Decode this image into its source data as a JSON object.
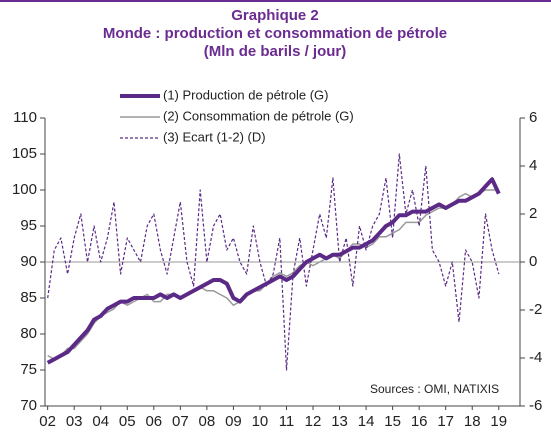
{
  "chart_data": {
    "type": "line",
    "title": "Graphique 2",
    "subtitle": [
      "Monde : production et consommation de pétrole",
      "(Mln de barils / jour)"
    ],
    "annotation": "Sources : OMI, NATIXIS",
    "x": [
      2002,
      2002.25,
      2002.5,
      2002.75,
      2003,
      2003.25,
      2003.5,
      2003.75,
      2004,
      2004.25,
      2004.5,
      2004.75,
      2005,
      2005.25,
      2005.5,
      2005.75,
      2006,
      2006.25,
      2006.5,
      2006.75,
      2007,
      2007.25,
      2007.5,
      2007.75,
      2008,
      2008.25,
      2008.5,
      2008.75,
      2009,
      2009.25,
      2009.5,
      2009.75,
      2010,
      2010.25,
      2010.5,
      2010.75,
      2011,
      2011.25,
      2011.5,
      2011.75,
      2012,
      2012.25,
      2012.5,
      2012.75,
      2013,
      2013.25,
      2013.5,
      2013.75,
      2014,
      2014.25,
      2014.5,
      2014.75,
      2015,
      2015.25,
      2015.5,
      2015.75,
      2016,
      2016.25,
      2016.5,
      2016.75,
      2017,
      2017.25,
      2017.5,
      2017.75,
      2018,
      2018.25,
      2018.5,
      2018.75,
      2019
    ],
    "xlim": [
      2001.9,
      2019.8
    ],
    "xticks": [
      {
        "value": 2002,
        "label": "02"
      },
      {
        "value": 2003,
        "label": "03"
      },
      {
        "value": 2004,
        "label": "04"
      },
      {
        "value": 2005,
        "label": "05"
      },
      {
        "value": 2006,
        "label": "06"
      },
      {
        "value": 2007,
        "label": "07"
      },
      {
        "value": 2008,
        "label": "08"
      },
      {
        "value": 2009,
        "label": "09"
      },
      {
        "value": 2010,
        "label": "10"
      },
      {
        "value": 2011,
        "label": "11"
      },
      {
        "value": 2012,
        "label": "12"
      },
      {
        "value": 2013,
        "label": "13"
      },
      {
        "value": 2014,
        "label": "14"
      },
      {
        "value": 2015,
        "label": "15"
      },
      {
        "value": 2016,
        "label": "16"
      },
      {
        "value": 2017,
        "label": "17"
      },
      {
        "value": 2018,
        "label": "18"
      },
      {
        "value": 2019,
        "label": "19"
      }
    ],
    "ylim": [
      70,
      110
    ],
    "yticks": [
      70,
      75,
      80,
      85,
      90,
      95,
      100,
      105,
      110
    ],
    "y2lim": [
      -6,
      6
    ],
    "y2ticks": [
      -6,
      -4,
      -2,
      0,
      2,
      4,
      6
    ],
    "series": [
      {
        "name": "(1) Production de pétrole (G)",
        "color": "#5b2a86",
        "values": [
          76,
          76.5,
          77,
          77.5,
          78.5,
          79.5,
          80.5,
          82,
          82.5,
          83.5,
          84,
          84.5,
          84.5,
          85,
          85,
          85,
          85,
          85.5,
          85,
          85.5,
          85,
          85.5,
          86,
          86.5,
          87,
          87.5,
          87.5,
          87,
          85,
          84.5,
          85.5,
          86,
          86.5,
          87,
          87.5,
          88,
          87.5,
          88,
          89,
          90,
          90.5,
          91,
          90.5,
          91,
          91,
          91.5,
          92,
          92,
          92.5,
          93,
          94,
          95,
          95.5,
          96.5,
          96.5,
          97,
          97,
          97,
          97.5,
          98,
          97.5,
          98,
          98.5,
          98.5,
          99,
          99.5,
          100.5,
          101.5,
          99.5
        ]
      },
      {
        "name": "(2) Consommation de pétrole (G)",
        "color": "#9a9a9a",
        "values": [
          77,
          76.5,
          77,
          78,
          78,
          79,
          80,
          81.5,
          82.5,
          83,
          83.5,
          84.5,
          84,
          84.5,
          85,
          85.5,
          84.5,
          84.5,
          85.5,
          85.5,
          85,
          85.5,
          86,
          86.5,
          86,
          86,
          85.5,
          85,
          84,
          84.5,
          85.5,
          86,
          86,
          87,
          88,
          88.5,
          88,
          88.5,
          89.5,
          90,
          89.5,
          90,
          90.5,
          91,
          90.5,
          91.5,
          92.5,
          92.5,
          92,
          92.5,
          93.5,
          93.5,
          94,
          94.5,
          95.5,
          95.5,
          95.5,
          96.5,
          97,
          97.5,
          97.5,
          98,
          99,
          99.5,
          99,
          99.5,
          100,
          100,
          100
        ]
      },
      {
        "name": "(3) Ecart (1-2) (D)",
        "color": "#5b2a86",
        "axis": "y2",
        "dashed": true,
        "values": [
          -1.5,
          0.5,
          1,
          -0.5,
          1,
          2,
          0,
          1.5,
          0,
          1,
          2.5,
          -0.5,
          1,
          0.5,
          0,
          1.5,
          2,
          0.5,
          -0.5,
          1,
          2.5,
          0,
          -1,
          3,
          0,
          1.5,
          2,
          0.5,
          1,
          0,
          -0.5,
          1.5,
          0,
          -1,
          -0.5,
          1,
          -4.5,
          -0.5,
          1,
          -1,
          0.5,
          2,
          1,
          3.5,
          0,
          1,
          -1,
          1.5,
          0.5,
          1.5,
          2,
          3.5,
          1,
          4.5,
          2,
          3,
          1.5,
          4,
          0.5,
          0,
          -1,
          0,
          -2.5,
          0.5,
          0,
          -1.5,
          2,
          0.5,
          -0.5
        ]
      }
    ]
  }
}
